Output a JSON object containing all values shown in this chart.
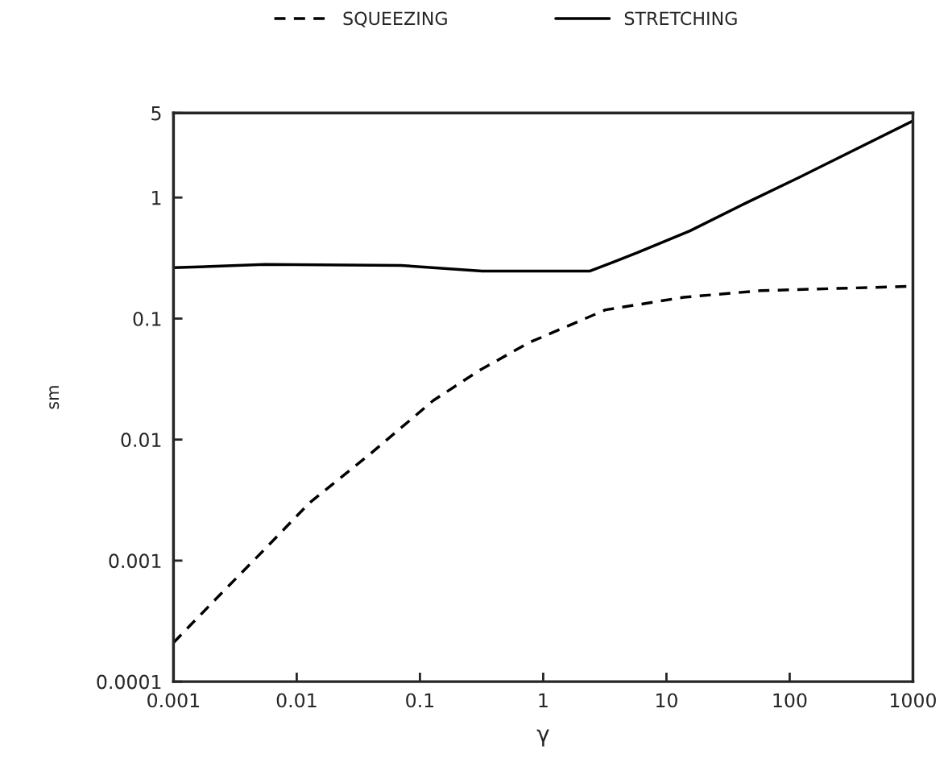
{
  "chart_data": {
    "type": "line",
    "xlabel": "γ",
    "ylabel": "sm",
    "log": "xy",
    "grid": false,
    "legend": "top",
    "xlim": [
      0.001,
      1000
    ],
    "xticks": [
      0.001,
      0.01,
      0.1,
      1,
      10,
      100,
      1000
    ],
    "ylim": [
      0.0001,
      5
    ],
    "yticks": [
      0.0001,
      0.001,
      0.01,
      0.1,
      1,
      5
    ],
    "series": [
      {
        "name": "SQUEEZING",
        "color": "#000000",
        "line_style": "dashed",
        "x": [
          0.001,
          0.0022,
          0.0054,
          0.0127,
          0.04,
          0.128,
          0.3,
          0.76,
          3.2,
          13.8,
          58,
          1000
        ],
        "values": [
          0.00021,
          0.00048,
          0.00122,
          0.003,
          0.0077,
          0.021,
          0.037,
          0.063,
          0.118,
          0.15,
          0.17,
          0.185
        ]
      },
      {
        "name": "STRETCHING",
        "color": "#000000",
        "line_style": "solid",
        "x": [
          0.001,
          0.0055,
          0.07,
          0.32,
          2.4,
          5.8,
          15.5,
          44,
          123,
          1000
        ],
        "values": [
          0.263,
          0.28,
          0.275,
          0.247,
          0.247,
          0.35,
          0.53,
          0.9,
          1.49,
          4.3
        ]
      }
    ]
  }
}
